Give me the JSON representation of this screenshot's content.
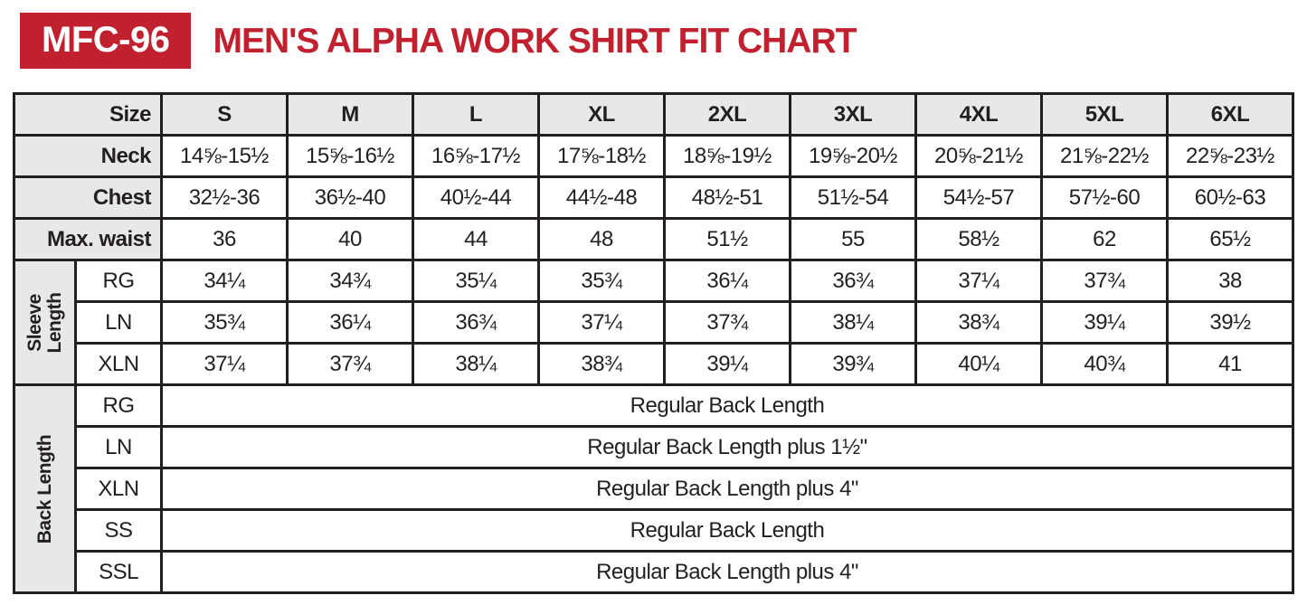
{
  "header": {
    "badge": "MFC-96",
    "title": "MEN'S ALPHA WORK SHIRT FIT CHART"
  },
  "colors": {
    "accent_red": "#c1202f",
    "header_gray": "#e8e8e8",
    "border_black": "#231f20"
  },
  "table": {
    "size_label": "Size",
    "sizes": [
      "S",
      "M",
      "L",
      "XL",
      "2XL",
      "3XL",
      "4XL",
      "5XL",
      "6XL"
    ],
    "rows": [
      {
        "label": "Neck",
        "values": [
          "14⅝-15½",
          "15⅝-16½",
          "16⅝-17½",
          "17⅝-18½",
          "18⅝-19½",
          "19⅝-20½",
          "20⅝-21½",
          "21⅝-22½",
          "22⅝-23½"
        ]
      },
      {
        "label": "Chest",
        "values": [
          "32½-36",
          "36½-40",
          "40½-44",
          "44½-48",
          "48½-51",
          "51½-54",
          "54½-57",
          "57½-60",
          "60½-63"
        ]
      },
      {
        "label": "Max. waist",
        "values": [
          "36",
          "40",
          "44",
          "48",
          "51½",
          "55",
          "58½",
          "62",
          "65½"
        ]
      }
    ],
    "sleeve_section": {
      "label": "Sleeve Length",
      "rows": [
        {
          "label": "RG",
          "values": [
            "34¼",
            "34¾",
            "35¼",
            "35¾",
            "36¼",
            "36¾",
            "37¼",
            "37¾",
            "38"
          ]
        },
        {
          "label": "LN",
          "values": [
            "35¾",
            "36¼",
            "36¾",
            "37¼",
            "37¾",
            "38¼",
            "38¾",
            "39¼",
            "39½"
          ]
        },
        {
          "label": "XLN",
          "values": [
            "37¼",
            "37¾",
            "38¼",
            "38¾",
            "39¼",
            "39¾",
            "40¼",
            "40¾",
            "41"
          ]
        }
      ]
    },
    "back_section": {
      "label": "Back Length",
      "rows": [
        {
          "label": "RG",
          "value": "Regular Back Length"
        },
        {
          "label": "LN",
          "value": "Regular Back Length plus 1½\""
        },
        {
          "label": "XLN",
          "value": "Regular Back Length plus 4\""
        },
        {
          "label": "SS",
          "value": "Regular Back Length"
        },
        {
          "label": "SSL",
          "value": "Regular Back Length plus 4\""
        }
      ]
    }
  },
  "chart_data": {
    "type": "table",
    "title": "MFC-96 MEN'S ALPHA WORK SHIRT FIT CHART",
    "columns": [
      "Size",
      "S",
      "M",
      "L",
      "XL",
      "2XL",
      "3XL",
      "4XL",
      "5XL",
      "6XL"
    ],
    "rows": [
      [
        "Neck",
        "14⅝-15½",
        "15⅝-16½",
        "16⅝-17½",
        "17⅝-18½",
        "18⅝-19½",
        "19⅝-20½",
        "20⅝-21½",
        "21⅝-22½",
        "22⅝-23½"
      ],
      [
        "Chest",
        "32½-36",
        "36½-40",
        "40½-44",
        "44½-48",
        "48½-51",
        "51½-54",
        "54½-57",
        "57½-60",
        "60½-63"
      ],
      [
        "Max. waist",
        "36",
        "40",
        "44",
        "48",
        "51½",
        "55",
        "58½",
        "62",
        "65½"
      ],
      [
        "Sleeve Length RG",
        "34¼",
        "34¾",
        "35¼",
        "35¾",
        "36¼",
        "36¾",
        "37¼",
        "37¾",
        "38"
      ],
      [
        "Sleeve Length LN",
        "35¾",
        "36¼",
        "36¾",
        "37¼",
        "37¾",
        "38¼",
        "38¾",
        "39¼",
        "39½"
      ],
      [
        "Sleeve Length XLN",
        "37¼",
        "37¾",
        "38¼",
        "38¾",
        "39¼",
        "39¾",
        "40¼",
        "40¾",
        "41"
      ],
      [
        "Back Length RG",
        "Regular Back Length"
      ],
      [
        "Back Length LN",
        "Regular Back Length plus 1½\""
      ],
      [
        "Back Length XLN",
        "Regular Back Length plus 4\""
      ],
      [
        "Back Length SS",
        "Regular Back Length"
      ],
      [
        "Back Length SSL",
        "Regular Back Length plus 4\""
      ]
    ]
  }
}
